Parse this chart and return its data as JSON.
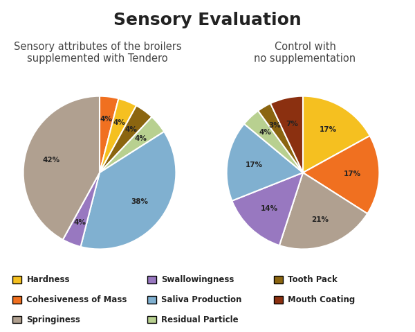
{
  "title": "Sensory Evaluation",
  "title_fontsize": 18,
  "title_fontweight": "bold",
  "subtitle1": "Sensory attributes of the broilers\nsupplemented with Tendero",
  "subtitle2": "Control with\nno supplementation",
  "subtitle_fontsize": 10.5,
  "background_color": "#ffffff",
  "colors": {
    "Hardness": "#F5C020",
    "Cohesiveness of Mass": "#F07020",
    "Springiness": "#B0A090",
    "Swallowingness": "#9878C0",
    "Saliva Production": "#80B0D0",
    "Residual Particle": "#B8D090",
    "Tooth Pack": "#8B6510",
    "Mouth Coating": "#8B3010"
  },
  "pie1_labels": [
    "Cohesiveness of Mass",
    "Hardness",
    "Tooth Pack",
    "Residual Particle",
    "Saliva Production",
    "Swallowingness",
    "Springiness"
  ],
  "pie1_values": [
    4,
    4,
    4,
    4,
    38,
    4,
    42
  ],
  "pie1_pct_labels": [
    "4%",
    "4%",
    "4%",
    "4%",
    "38%",
    "4%",
    "42%"
  ],
  "pie2_labels": [
    "Hardness",
    "Cohesiveness of Mass",
    "Springiness",
    "Swallowingness",
    "Saliva Production",
    "Residual Particle",
    "Tooth Pack",
    "Mouth Coating"
  ],
  "pie2_values": [
    17,
    17,
    21,
    14,
    17,
    4,
    3,
    7
  ],
  "pie2_pct_labels": [
    "17%",
    "17%",
    "21%",
    "14%",
    "17%",
    "4%",
    "3%",
    "7%"
  ],
  "legend_items": [
    {
      "label": "Hardness",
      "color": "#F5C020"
    },
    {
      "label": "Cohesiveness of Mass",
      "color": "#F07020"
    },
    {
      "label": "Springiness",
      "color": "#B0A090"
    },
    {
      "label": "Swallowingness",
      "color": "#9878C0"
    },
    {
      "label": "Saliva Production",
      "color": "#80B0D0"
    },
    {
      "label": "Residual Particle",
      "color": "#B8D090"
    },
    {
      "label": "Tooth Pack",
      "color": "#8B6510"
    },
    {
      "label": "Mouth Coating",
      "color": "#8B3010"
    }
  ]
}
